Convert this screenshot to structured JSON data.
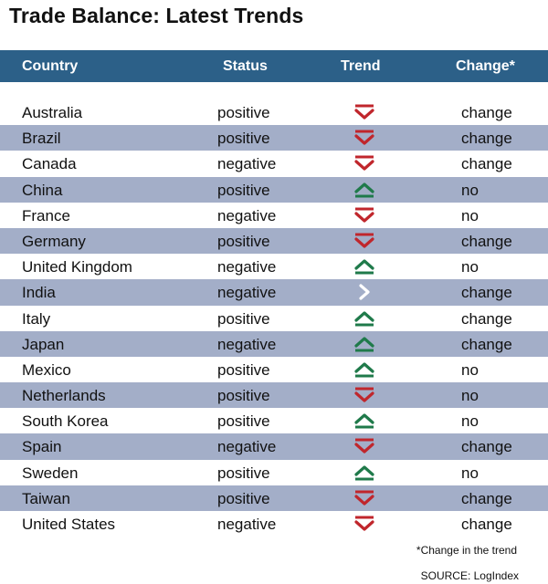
{
  "title": "Trade Balance: Latest Trends",
  "colors": {
    "header_bg": "#2c6088",
    "stripe": "#a3aec8",
    "down": "#c0262c",
    "up": "#1f7a4a",
    "flat": "#ffffff"
  },
  "chart_data": {
    "type": "table",
    "columns": [
      "Country",
      "Status",
      "Trend",
      "Change*"
    ],
    "rows": [
      {
        "country": "Australia",
        "status": "positive",
        "trend": "down-icon",
        "change": "change"
      },
      {
        "country": "Brazil",
        "status": "positive",
        "trend": "down-icon",
        "change": "change"
      },
      {
        "country": "Canada",
        "status": "negative",
        "trend": "down-icon",
        "change": "change"
      },
      {
        "country": "China",
        "status": "positive",
        "trend": "up-icon",
        "change": "no"
      },
      {
        "country": "France",
        "status": "negative",
        "trend": "down-icon",
        "change": "no"
      },
      {
        "country": "Germany",
        "status": "positive",
        "trend": "down-icon",
        "change": "change"
      },
      {
        "country": "United Kingdom",
        "status": "negative",
        "trend": "up-icon",
        "change": "no"
      },
      {
        "country": "India",
        "status": "negative",
        "trend": "flat-icon",
        "change": "change"
      },
      {
        "country": "Italy",
        "status": "positive",
        "trend": "up-icon",
        "change": "change"
      },
      {
        "country": "Japan",
        "status": "negative",
        "trend": "up-icon",
        "change": "change"
      },
      {
        "country": "Mexico",
        "status": "positive",
        "trend": "up-icon",
        "change": "no"
      },
      {
        "country": "Netherlands",
        "status": "positive",
        "trend": "down-icon",
        "change": "no"
      },
      {
        "country": "South Korea",
        "status": "positive",
        "trend": "up-icon",
        "change": "no"
      },
      {
        "country": "Spain",
        "status": "negative",
        "trend": "down-icon",
        "change": "change"
      },
      {
        "country": "Sweden",
        "status": "positive",
        "trend": "up-icon",
        "change": "no"
      },
      {
        "country": "Taiwan",
        "status": "positive",
        "trend": "down-icon",
        "change": "change"
      },
      {
        "country": "United States",
        "status": "negative",
        "trend": "down-icon",
        "change": "change"
      }
    ]
  },
  "footnote": "*Change in the trend",
  "source": "SOURCE: LogIndex"
}
